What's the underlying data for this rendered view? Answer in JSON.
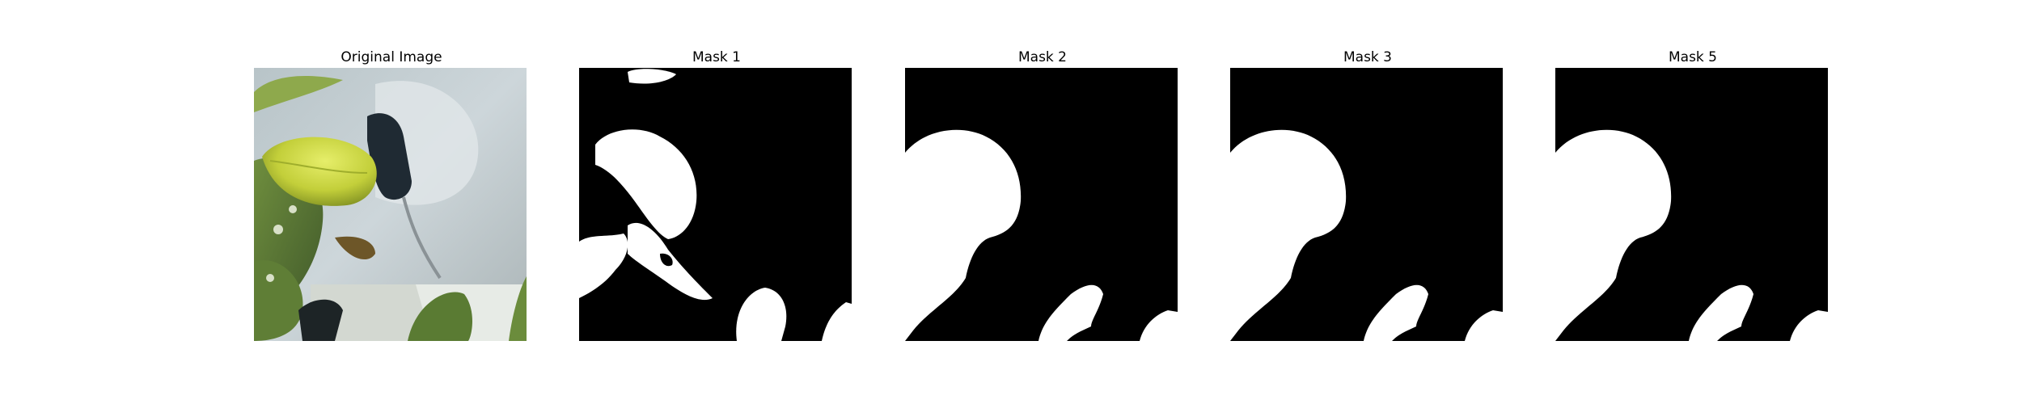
{
  "panels": [
    {
      "title": "Original Image"
    },
    {
      "title": "Mask 1"
    },
    {
      "title": "Mask 2"
    },
    {
      "title": "Mask 3"
    },
    {
      "title": "Mask 5"
    }
  ],
  "colors": {
    "mask_background": "#000000",
    "mask_foreground": "#ffffff",
    "page_background": "#ffffff"
  }
}
